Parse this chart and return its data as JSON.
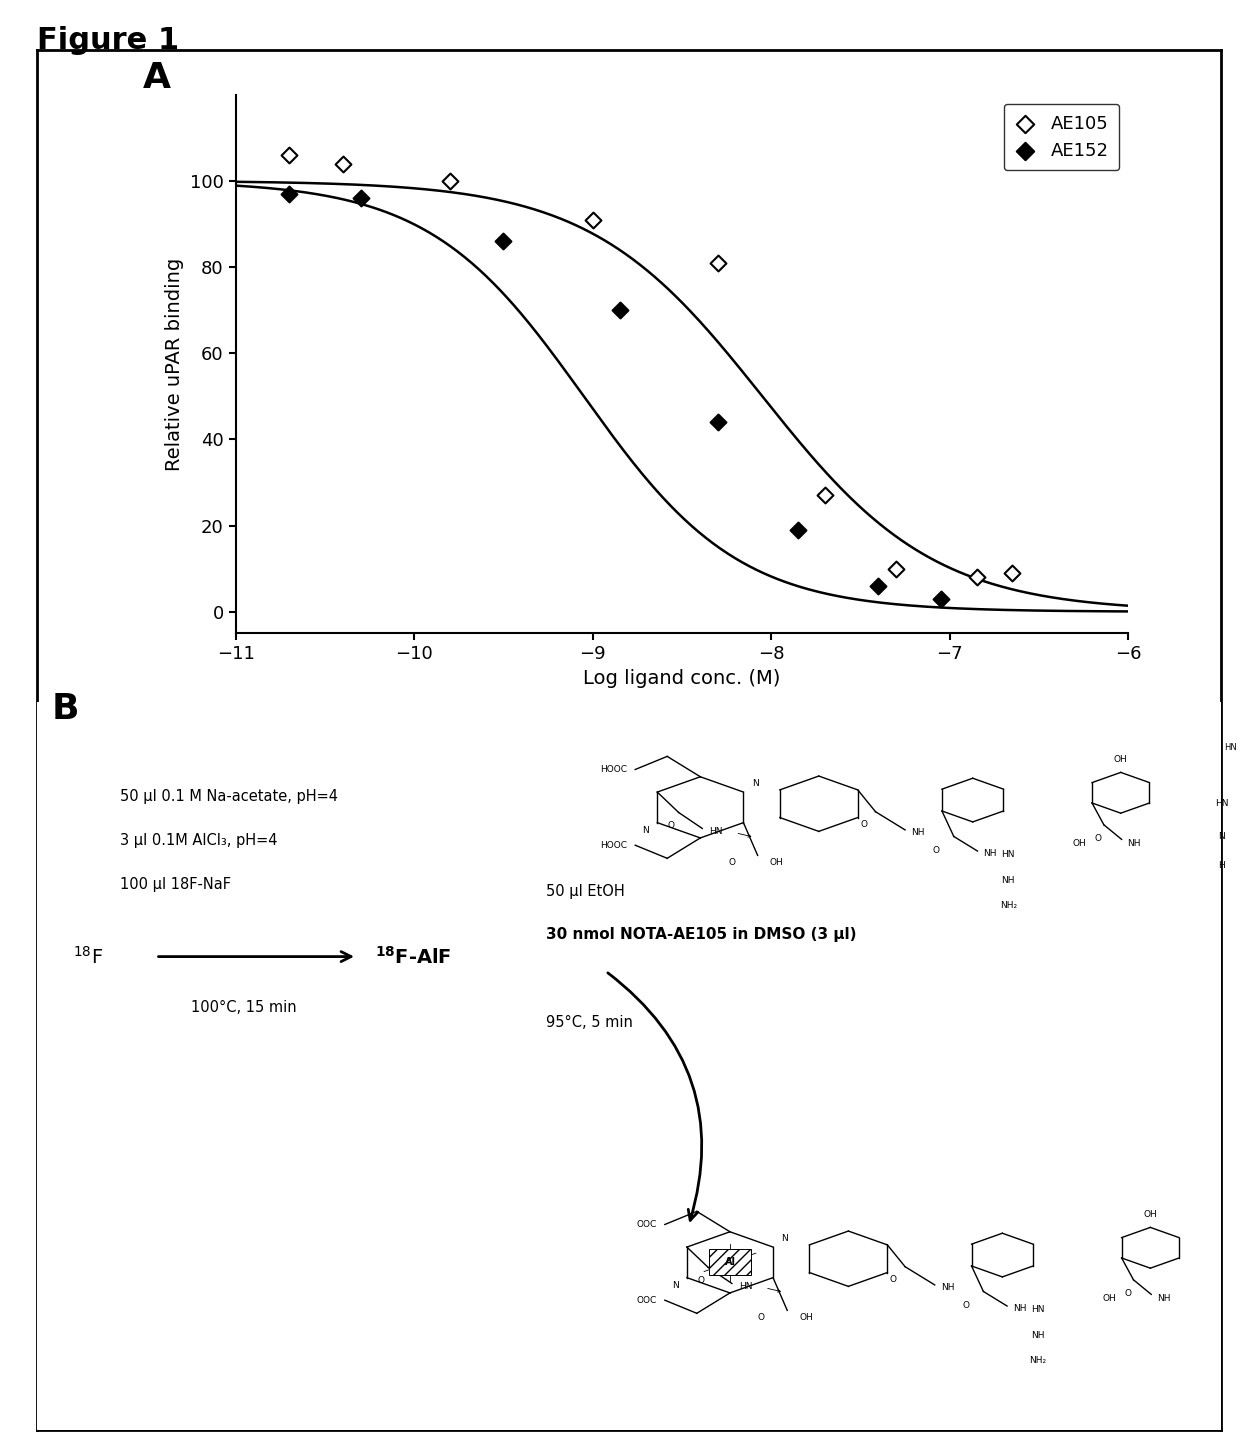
{
  "figure_title": "Figure 1",
  "panel_A_label": "A",
  "panel_B_label": "B",
  "xlabel": "Log ligand conc. (M)",
  "ylabel": "Relative uPAR binding",
  "xlim": [
    -11,
    -6
  ],
  "ylim": [
    -5,
    120
  ],
  "yticks": [
    0,
    20,
    40,
    60,
    80,
    100
  ],
  "xticks": [
    -11,
    -10,
    -9,
    -8,
    -7,
    -6
  ],
  "AE105_x": [
    -10.7,
    -10.4,
    -9.8,
    -9.0,
    -8.3,
    -7.7,
    -7.3,
    -6.85,
    -6.65
  ],
  "AE105_y": [
    106,
    104,
    100,
    91,
    81,
    27,
    10,
    8,
    9
  ],
  "AE152_x": [
    -10.7,
    -10.3,
    -9.5,
    -8.85,
    -8.3,
    -7.85,
    -7.4,
    -7.05
  ],
  "AE152_y": [
    97,
    96,
    86,
    70,
    44,
    19,
    6,
    3
  ],
  "AE105_ic50": -8.05,
  "AE152_ic50": -9.05,
  "legend_AE105": "AE105",
  "legend_AE152": "AE152",
  "reaction_line1": "50 μl 0.1 M Na-acetate, pH=4",
  "reaction_line2": "3 μl 0.1M AlCl₃, pH=4",
  "reaction_line3": "100 μl 18F-NaF",
  "reaction_temp": "100°C, 15 min",
  "step2_line1": "50 μl EtOH",
  "step2_line2": "30 nmol NOTA-AE105 in DMSO (3 μl)",
  "step2_temp": "95°C, 5 min",
  "bg_color": "#ffffff",
  "plot_color": "#000000"
}
